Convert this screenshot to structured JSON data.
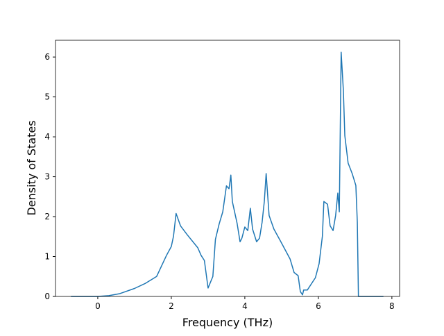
{
  "chart_data": {
    "type": "line",
    "x_label": "Frequency (THz)",
    "y_label": "Density of States",
    "x": [
      -0.73,
      0,
      0.3,
      0.6,
      1.0,
      1.3,
      1.6,
      1.87,
      2.0,
      2.06,
      2.13,
      2.25,
      2.43,
      2.72,
      2.81,
      2.9,
      3.0,
      3.13,
      3.2,
      3.3,
      3.4,
      3.5,
      3.57,
      3.62,
      3.66,
      3.79,
      3.87,
      3.92,
      4.0,
      4.08,
      4.15,
      4.21,
      4.32,
      4.4,
      4.47,
      4.53,
      4.58,
      4.66,
      4.79,
      4.98,
      5.23,
      5.34,
      5.45,
      5.51,
      5.57,
      5.6,
      5.7,
      5.92,
      6.02,
      6.11,
      6.15,
      6.25,
      6.32,
      6.4,
      6.47,
      6.53,
      6.57,
      6.62,
      6.68,
      6.72,
      6.81,
      6.92,
      7.02,
      7.06,
      7.09,
      7.77
    ],
    "series": [
      {
        "color": "#1f77b4",
        "values": [
          0,
          0,
          0.02,
          0.07,
          0.2,
          0.33,
          0.5,
          1.03,
          1.25,
          1.51,
          2.08,
          1.77,
          1.55,
          1.22,
          1.03,
          0.9,
          0.21,
          0.5,
          1.43,
          1.81,
          2.12,
          2.77,
          2.7,
          3.04,
          2.38,
          1.83,
          1.37,
          1.46,
          1.74,
          1.65,
          2.21,
          1.69,
          1.37,
          1.46,
          1.86,
          2.38,
          3.08,
          2.03,
          1.69,
          1.37,
          0.94,
          0.6,
          0.52,
          0.12,
          0.04,
          0.16,
          0.16,
          0.47,
          0.82,
          1.51,
          2.38,
          2.31,
          1.77,
          1.65,
          2.03,
          2.59,
          2.12,
          6.12,
          5.17,
          4.03,
          3.34,
          3.08,
          2.78,
          1.86,
          0,
          0
        ]
      }
    ],
    "xlim": [
      -1.15,
      8.21
    ],
    "ylim": [
      0,
      6.42
    ],
    "xticks": [
      0,
      2,
      4,
      6,
      8
    ],
    "yticks": [
      0,
      1,
      2,
      3,
      4,
      5,
      6
    ]
  }
}
